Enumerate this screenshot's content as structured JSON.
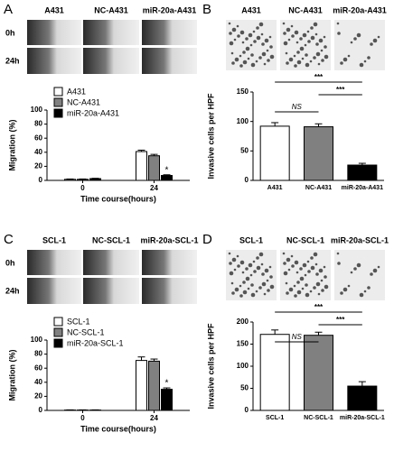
{
  "chart_data": [
    {
      "type": "grouped_bar",
      "panel": "A",
      "image_labels": [
        "A431",
        "NC-A431",
        "miR-20a-A431"
      ],
      "row_labels": [
        "0h",
        "24h"
      ],
      "categories": [
        "0",
        "24"
      ],
      "series": [
        {
          "name": "A431",
          "color": "#ffffff",
          "values": [
            1.5,
            41
          ],
          "errors": [
            0.5,
            2
          ]
        },
        {
          "name": "NC-A431",
          "color": "#808080",
          "values": [
            1.5,
            35
          ],
          "errors": [
            0.5,
            2
          ]
        },
        {
          "name": "miR-20a-A431",
          "color": "#000000",
          "values": [
            2.5,
            7
          ],
          "errors": [
            0.5,
            1
          ]
        }
      ],
      "ylim": [
        0,
        100
      ],
      "yticks": [
        0,
        20,
        40,
        60,
        80,
        100
      ],
      "ylabel": "Migration (%)",
      "xlabel": "Time course(hours)",
      "annotations": [
        "*"
      ]
    },
    {
      "type": "bar",
      "panel": "B",
      "image_labels": [
        "A431",
        "NC-A431",
        "miR-20a-A431"
      ],
      "categories": [
        "A431",
        "NC-A431",
        "miR-20a-A431"
      ],
      "values": [
        92,
        91,
        26
      ],
      "errors": [
        6,
        5,
        3
      ],
      "colors": [
        "#ffffff",
        "#808080",
        "#000000"
      ],
      "ylim": [
        0,
        150
      ],
      "yticks": [
        0,
        50,
        100,
        150
      ],
      "ylabel": "Invasive cells per HPF",
      "annotations": [
        "NS",
        "***",
        "***"
      ]
    },
    {
      "type": "grouped_bar",
      "panel": "C",
      "image_labels": [
        "SCL-1",
        "NC-SCL-1",
        "miR-20a-SCL-1"
      ],
      "row_labels": [
        "0h",
        "24h"
      ],
      "categories": [
        "0",
        "24"
      ],
      "series": [
        {
          "name": "SCL-1",
          "color": "#ffffff",
          "values": [
            0.5,
            71
          ],
          "errors": [
            0.3,
            5
          ]
        },
        {
          "name": "NC-SCL-1",
          "color": "#808080",
          "values": [
            0.5,
            70
          ],
          "errors": [
            0.3,
            3
          ]
        },
        {
          "name": "miR-20a-SCL-1",
          "color": "#000000",
          "values": [
            0.5,
            30
          ],
          "errors": [
            0.3,
            2
          ]
        }
      ],
      "ylim": [
        0,
        100
      ],
      "yticks": [
        0,
        20,
        40,
        60,
        80,
        100
      ],
      "ylabel": "Migration (%)",
      "xlabel": "Time course(hours)",
      "annotations": [
        "*"
      ]
    },
    {
      "type": "bar",
      "panel": "D",
      "image_labels": [
        "SCL-1",
        "NC-SCL-1",
        "miR-20a-SCL-1"
      ],
      "categories": [
        "SCL-1",
        "NC-SCL-1",
        "miR-20a-SCL-1"
      ],
      "values": [
        172,
        170,
        55
      ],
      "errors": [
        10,
        7,
        10
      ],
      "colors": [
        "#ffffff",
        "#808080",
        "#000000"
      ],
      "ylim": [
        0,
        200
      ],
      "yticks": [
        0,
        50,
        100,
        150,
        200
      ],
      "ylabel": "Invasive cells per HPF",
      "annotations": [
        "NS",
        "***",
        "***"
      ]
    }
  ]
}
